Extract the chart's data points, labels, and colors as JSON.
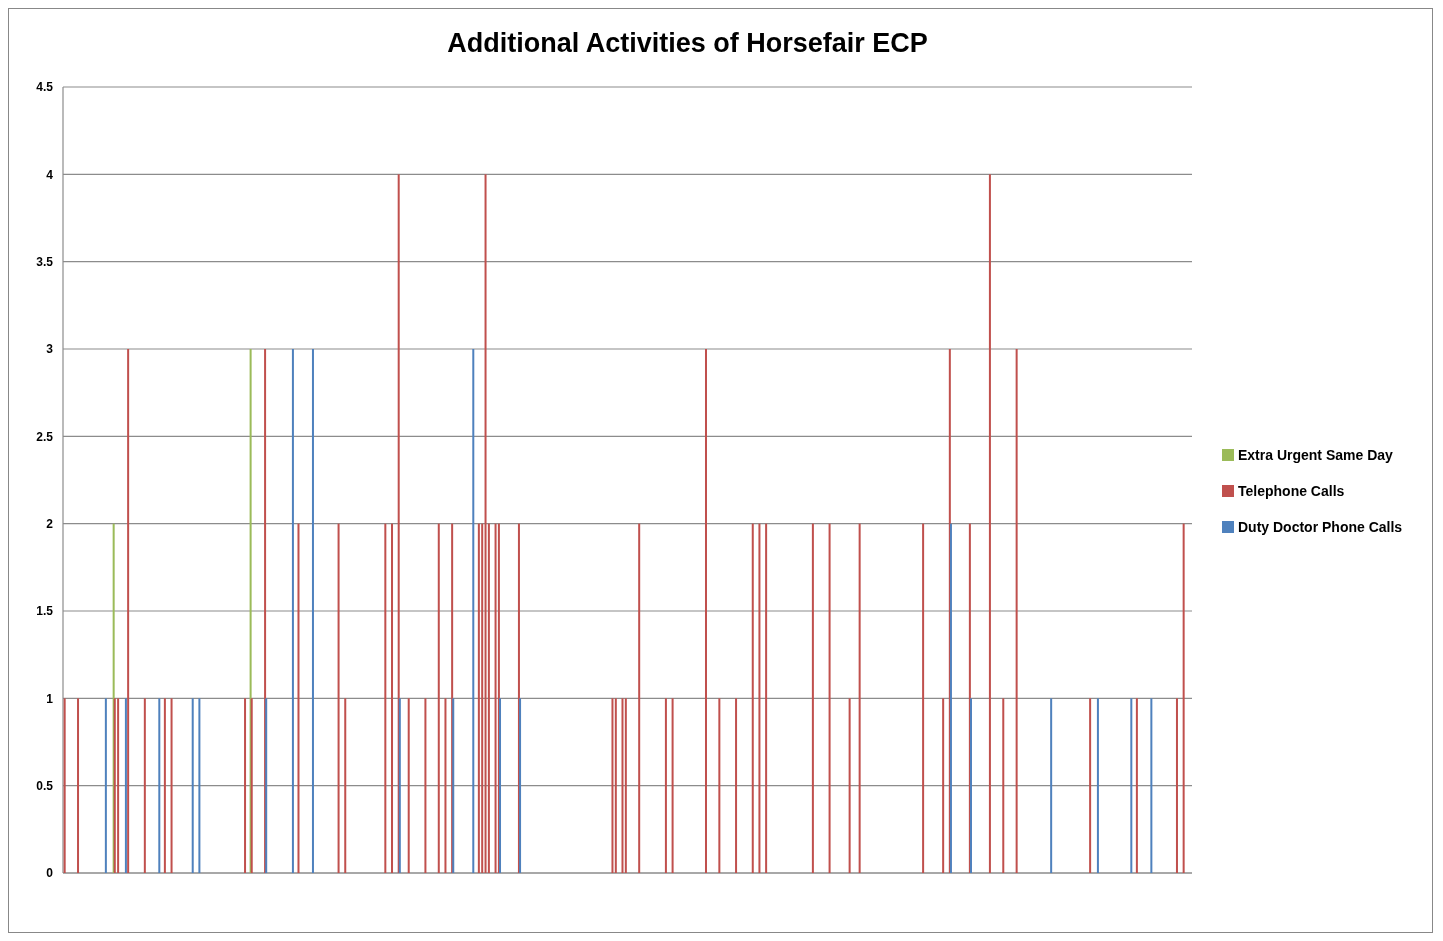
{
  "chart_data": {
    "type": "bar",
    "title": "Additional Activities of Horsefair ECP",
    "categories": [
      null,
      null,
      null,
      null,
      null,
      null,
      null,
      null,
      null,
      null,
      null,
      null,
      null,
      null,
      null,
      null,
      null,
      null,
      null,
      null,
      null,
      null,
      null,
      null,
      null,
      null,
      null,
      null,
      null,
      null,
      null,
      null,
      null,
      null,
      null,
      null,
      null,
      null,
      null,
      null,
      null,
      null,
      null,
      null,
      null,
      null,
      null,
      null,
      null,
      null,
      null,
      null,
      null,
      null,
      null,
      null,
      null,
      null,
      null,
      null,
      null,
      null,
      null,
      null,
      null,
      null,
      null,
      null,
      null,
      null,
      null,
      null,
      null,
      null,
      null,
      null,
      null,
      null,
      null,
      null,
      null,
      null,
      null,
      null,
      null,
      null,
      null,
      null,
      null,
      null,
      null,
      null,
      null,
      null,
      null,
      null,
      null,
      null,
      null,
      null,
      null,
      null,
      null,
      null,
      null,
      null,
      null,
      null,
      null,
      null,
      null,
      null,
      null,
      null,
      null,
      null,
      null,
      null,
      null,
      null,
      null,
      null,
      null,
      null,
      null,
      null,
      null,
      null,
      null,
      null,
      null,
      null,
      null,
      null,
      null,
      null,
      null,
      null,
      null,
      null,
      null,
      null,
      null,
      null,
      null,
      null,
      null,
      null,
      null,
      null,
      null,
      null,
      null,
      null,
      null,
      null,
      null,
      null,
      null,
      null,
      null,
      null,
      null,
      null,
      null,
      null,
      null,
      null,
      null,
      null,
      null,
      null,
      null,
      null,
      null,
      null,
      null,
      null,
      null,
      null,
      null,
      null,
      null,
      null,
      null,
      null,
      null,
      null,
      null,
      null,
      null,
      null,
      null,
      null,
      null,
      null,
      null,
      null,
      null,
      null,
      null,
      null,
      null,
      null,
      null,
      null,
      null,
      null,
      null,
      null,
      null,
      null,
      null,
      null,
      null,
      null,
      null,
      null,
      null,
      null,
      null,
      null,
      null,
      null,
      null,
      null,
      null,
      null,
      null,
      null,
      null,
      null,
      null,
      null,
      null,
      null,
      null,
      null,
      null,
      null,
      null,
      null,
      null,
      null,
      null,
      null,
      null,
      null,
      null,
      null,
      null,
      null,
      null,
      null,
      null,
      null,
      null,
      null,
      null,
      null,
      null,
      null,
      null,
      null,
      null,
      null,
      null,
      null,
      null,
      null,
      null,
      null,
      null,
      null,
      null,
      null,
      null,
      null,
      null,
      null,
      null,
      null,
      null,
      null,
      null,
      null,
      null,
      null,
      null,
      null,
      null,
      null,
      null,
      null,
      null,
      null,
      null,
      null,
      null,
      null,
      null,
      null,
      null,
      null,
      null,
      null,
      null,
      null,
      null,
      null,
      null,
      null,
      null,
      null,
      null,
      null,
      null,
      null,
      null,
      null,
      null,
      null,
      null,
      null,
      null,
      null,
      null,
      null,
      null,
      null,
      null,
      null,
      null,
      null,
      null,
      null,
      null,
      null
    ],
    "series": [
      {
        "name": "Extra Urgent Same Day",
        "color": "#9bbb59",
        "values": [
          0,
          0,
          0,
          0,
          0,
          0,
          0,
          0,
          0,
          0,
          0,
          0,
          0,
          0,
          0,
          2,
          0,
          0,
          0,
          0,
          0,
          0,
          0,
          0,
          0,
          0,
          0,
          0,
          0,
          0,
          0,
          0,
          0,
          0,
          0,
          0,
          0,
          0,
          0,
          0,
          0,
          0,
          0,
          0,
          0,
          0,
          0,
          0,
          0,
          0,
          0,
          0,
          0,
          0,
          0,
          0,
          3,
          0,
          0,
          0,
          0,
          0,
          0,
          0,
          0,
          0,
          0,
          0,
          0,
          0,
          0,
          0,
          0,
          0,
          0,
          0,
          0,
          0,
          0,
          0,
          0,
          0,
          0,
          0,
          0,
          0,
          0,
          0,
          0,
          0,
          0,
          0,
          0,
          0,
          0,
          0,
          0,
          0,
          0,
          0,
          0,
          0,
          0,
          0,
          0,
          0,
          0,
          0,
          0,
          0,
          0,
          0,
          0,
          0,
          0,
          0,
          0,
          0,
          0,
          0,
          0,
          0,
          0,
          0,
          0,
          0,
          0,
          0,
          0,
          0,
          0,
          0,
          0,
          0,
          0,
          0,
          0,
          0,
          0,
          0,
          0,
          0,
          0,
          0,
          0,
          0,
          0,
          0,
          0,
          0,
          0,
          0,
          0,
          0,
          0,
          0,
          0,
          0,
          0,
          0,
          0,
          0,
          0,
          0,
          0,
          0,
          0,
          0,
          0,
          0,
          0,
          0,
          0,
          0,
          0,
          0,
          0,
          0,
          0,
          0,
          0,
          0,
          0,
          0,
          0,
          0,
          0,
          0,
          0,
          0,
          0,
          0,
          0,
          0,
          0,
          0,
          0,
          0,
          0,
          0,
          0,
          0,
          0,
          0,
          0,
          0,
          0,
          0,
          0,
          0,
          0,
          0,
          0,
          0,
          0,
          0,
          0,
          0,
          0,
          0,
          0,
          0,
          0,
          0,
          0,
          0,
          0,
          0,
          0,
          0,
          0,
          0,
          0,
          0,
          0,
          0,
          0,
          0,
          0,
          0,
          0,
          0,
          0,
          0,
          0,
          0,
          0,
          0,
          0,
          0,
          0,
          0,
          0,
          0,
          0,
          0,
          0,
          0,
          0,
          0,
          0,
          0,
          0,
          0,
          0,
          0,
          0,
          0,
          0,
          0,
          0,
          0,
          0,
          0,
          0,
          0,
          0,
          0,
          0,
          0,
          0,
          0,
          0,
          0,
          0,
          0,
          0,
          0,
          0,
          0,
          0,
          0,
          0,
          0,
          0,
          0,
          0,
          0,
          0,
          0,
          0,
          0,
          0,
          0,
          0,
          0,
          0,
          0,
          0,
          0,
          0,
          0,
          0,
          0,
          0,
          0,
          0,
          0,
          0,
          0,
          0,
          0,
          0,
          0,
          0,
          0,
          0,
          0,
          0,
          0,
          0,
          0,
          0,
          0,
          0,
          0,
          0,
          0
        ]
      },
      {
        "name": "Telephone Calls",
        "color": "#c0504d",
        "values": [
          1,
          0,
          0,
          0,
          1,
          0,
          0,
          0,
          0,
          0,
          0,
          0,
          0,
          0,
          0,
          1,
          1,
          0,
          0,
          3,
          0,
          0,
          0,
          0,
          1,
          0,
          0,
          0,
          0,
          0,
          1,
          0,
          1,
          0,
          0,
          0,
          0,
          0,
          0,
          0,
          0,
          0,
          0,
          0,
          0,
          0,
          0,
          0,
          0,
          0,
          0,
          0,
          0,
          0,
          1,
          0,
          1,
          0,
          0,
          0,
          3,
          0,
          0,
          0,
          0,
          0,
          0,
          0,
          0,
          0,
          2,
          0,
          0,
          0,
          0,
          0,
          0,
          0,
          0,
          0,
          0,
          0,
          2,
          0,
          1,
          0,
          0,
          0,
          0,
          0,
          0,
          0,
          0,
          0,
          0,
          0,
          2,
          0,
          2,
          0,
          4,
          0,
          0,
          1,
          0,
          0,
          0,
          0,
          1,
          0,
          0,
          0,
          2,
          0,
          1,
          0,
          2,
          0,
          0,
          0,
          0,
          0,
          0,
          0,
          2,
          2,
          4,
          2,
          0,
          2,
          2,
          0,
          0,
          0,
          0,
          0,
          2,
          0,
          0,
          0,
          0,
          0,
          0,
          0,
          0,
          0,
          0,
          0,
          0,
          0,
          0,
          0,
          0,
          0,
          0,
          0,
          0,
          0,
          0,
          0,
          0,
          0,
          0,
          0,
          1,
          1,
          0,
          1,
          1,
          0,
          0,
          0,
          2,
          0,
          0,
          0,
          0,
          0,
          0,
          0,
          1,
          0,
          1,
          0,
          0,
          0,
          0,
          0,
          0,
          0,
          0,
          0,
          3,
          0,
          0,
          0,
          1,
          0,
          0,
          0,
          0,
          1,
          0,
          0,
          0,
          0,
          2,
          0,
          2,
          0,
          2,
          0,
          0,
          0,
          0,
          0,
          0,
          0,
          0,
          0,
          0,
          0,
          0,
          0,
          2,
          0,
          0,
          0,
          0,
          2,
          0,
          0,
          0,
          0,
          0,
          1,
          0,
          0,
          2,
          0,
          0,
          0,
          0,
          0,
          0,
          0,
          0,
          0,
          0,
          0,
          0,
          0,
          0,
          0,
          0,
          0,
          0,
          2,
          0,
          0,
          0,
          0,
          0,
          1,
          0,
          3,
          0,
          0,
          0,
          0,
          0,
          2,
          0,
          0,
          0,
          0,
          0,
          4,
          0,
          0,
          0,
          1,
          0,
          0,
          0,
          3,
          0,
          0,
          0,
          0,
          0,
          0,
          0,
          0,
          0,
          0,
          0,
          0,
          0,
          0,
          0,
          0,
          0,
          0,
          0,
          0,
          0,
          1,
          0,
          0,
          0,
          0,
          0,
          0,
          0,
          0,
          0,
          0,
          0,
          0,
          0,
          1,
          0,
          0,
          0,
          0,
          0,
          0,
          0,
          0,
          0,
          0,
          0,
          1,
          0,
          2,
          0,
          0
        ]
      },
      {
        "name": "Duty Doctor Phone Calls",
        "color": "#4f81bd",
        "values": [
          0,
          0,
          0,
          0,
          0,
          0,
          0,
          0,
          0,
          0,
          0,
          0,
          1,
          0,
          0,
          0,
          0,
          0,
          1,
          0,
          0,
          0,
          0,
          0,
          0,
          0,
          0,
          0,
          1,
          0,
          0,
          0,
          0,
          0,
          0,
          0,
          0,
          0,
          1,
          0,
          1,
          0,
          0,
          0,
          0,
          0,
          0,
          0,
          0,
          0,
          0,
          0,
          0,
          0,
          0,
          0,
          0,
          0,
          0,
          0,
          1,
          0,
          0,
          0,
          0,
          0,
          0,
          0,
          3,
          0,
          0,
          0,
          0,
          0,
          3,
          0,
          0,
          0,
          0,
          0,
          0,
          0,
          0,
          0,
          0,
          0,
          0,
          0,
          0,
          0,
          0,
          0,
          0,
          0,
          0,
          0,
          0,
          0,
          0,
          0,
          1,
          0,
          0,
          0,
          0,
          0,
          0,
          0,
          0,
          0,
          0,
          0,
          0,
          0,
          0,
          0,
          1,
          0,
          0,
          0,
          0,
          0,
          3,
          0,
          0,
          0,
          0,
          0,
          0,
          0,
          1,
          0,
          0,
          0,
          0,
          0,
          1,
          0,
          0,
          0,
          0,
          0,
          0,
          0,
          0,
          0,
          0,
          0,
          0,
          0,
          0,
          0,
          0,
          0,
          0,
          0,
          0,
          0,
          0,
          0,
          0,
          0,
          0,
          0,
          0,
          0,
          0,
          0,
          0,
          0,
          0,
          0,
          0,
          0,
          0,
          0,
          0,
          0,
          0,
          0,
          0,
          0,
          0,
          0,
          0,
          0,
          0,
          0,
          0,
          0,
          0,
          0,
          0,
          0,
          0,
          0,
          0,
          0,
          0,
          0,
          0,
          0,
          0,
          0,
          0,
          0,
          0,
          0,
          0,
          0,
          0,
          0,
          0,
          0,
          0,
          0,
          0,
          0,
          0,
          0,
          0,
          0,
          0,
          0,
          0,
          0,
          0,
          0,
          0,
          0,
          0,
          0,
          0,
          0,
          0,
          0,
          0,
          0,
          0,
          0,
          0,
          0,
          0,
          0,
          0,
          0,
          0,
          0,
          0,
          0,
          0,
          0,
          0,
          0,
          0,
          0,
          0,
          0,
          0,
          0,
          0,
          0,
          0,
          0,
          0,
          2,
          0,
          0,
          0,
          0,
          0,
          1,
          0,
          0,
          0,
          0,
          0,
          0,
          0,
          0,
          0,
          0,
          0,
          0,
          0,
          0,
          0,
          0,
          0,
          0,
          0,
          0,
          0,
          0,
          0,
          1,
          0,
          0,
          0,
          0,
          0,
          0,
          0,
          0,
          0,
          0,
          0,
          0,
          0,
          1,
          0,
          0,
          0,
          0,
          0,
          0,
          0,
          0,
          0,
          1,
          0,
          0,
          0,
          0,
          0,
          1,
          0,
          0,
          0,
          0,
          0,
          0,
          0,
          0,
          0,
          0,
          0,
          0
        ]
      }
    ],
    "ylim": [
      0,
      4.5
    ],
    "yticks": [
      0,
      0.5,
      1,
      1.5,
      2,
      2.5,
      3,
      3.5,
      4,
      4.5
    ],
    "grid": "y",
    "legend": "right",
    "tick_labels": "y"
  }
}
